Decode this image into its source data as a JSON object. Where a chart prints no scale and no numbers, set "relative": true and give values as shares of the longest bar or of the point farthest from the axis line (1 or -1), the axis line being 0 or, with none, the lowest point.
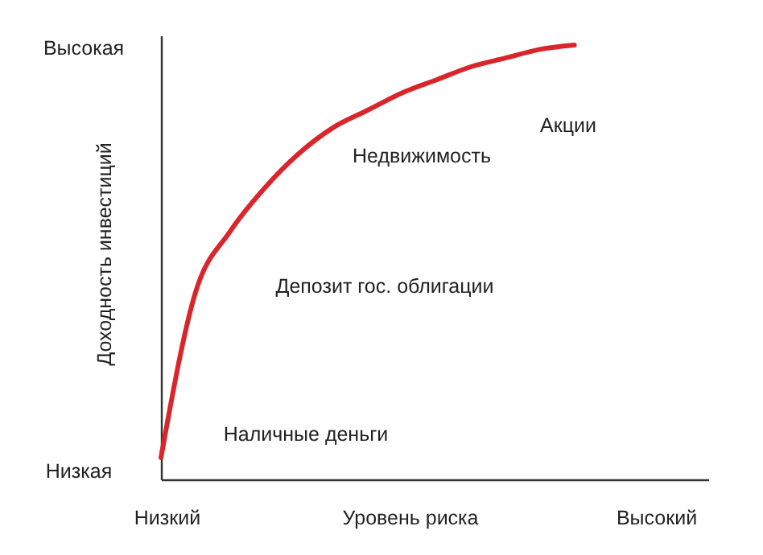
{
  "chart_data": {
    "type": "line",
    "relative": true,
    "xlabel": "Уровень риска",
    "ylabel": "Доходность инвестиций",
    "categories": [
      null,
      null,
      null,
      null,
      null,
      null,
      null,
      null,
      null,
      null,
      null,
      null,
      null
    ],
    "series": [
      {
        "color": "#d9262b",
        "values": [
          0.05,
          0.43,
          0.57,
          0.67,
          0.75,
          0.81,
          0.85,
          0.89,
          0.92,
          0.95,
          0.97,
          0.99,
          1
        ]
      }
    ],
    "annotations": [
      "Высокая",
      "Низкая",
      "Низкий",
      "Высокий",
      "Акции",
      "Недвижимость",
      "Депозит гос. облигации",
      "Наличные деньги"
    ],
    "grid": false,
    "marker": "none",
    "line_style": "solid"
  }
}
